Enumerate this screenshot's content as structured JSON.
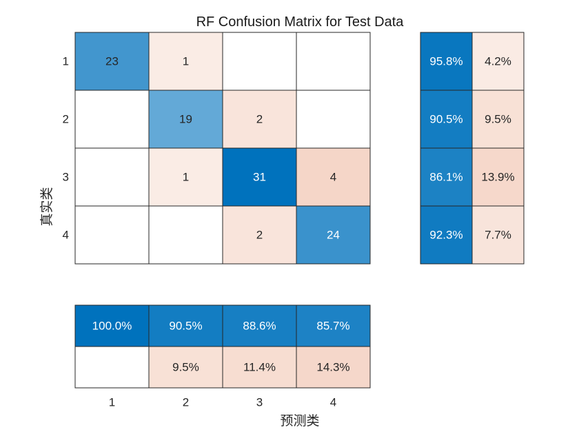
{
  "chart_data": {
    "type": "heatmap",
    "title": "RF Confusion Matrix for Test Data",
    "xlabel": "预测类",
    "ylabel": "真实类",
    "classes": [
      "1",
      "2",
      "3",
      "4"
    ],
    "matrix": [
      [
        23,
        1,
        null,
        null
      ],
      [
        null,
        19,
        2,
        null
      ],
      [
        null,
        1,
        31,
        4
      ],
      [
        null,
        null,
        2,
        24
      ]
    ],
    "row_summary": {
      "correct": [
        "95.8%",
        "90.5%",
        "86.1%",
        "92.3%"
      ],
      "incorrect": [
        "4.2%",
        "9.5%",
        "13.9%",
        "7.7%"
      ]
    },
    "column_summary": {
      "correct": [
        "100.0%",
        "90.5%",
        "88.6%",
        "85.7%"
      ],
      "incorrect": [
        "",
        "9.5%",
        "11.4%",
        "14.3%"
      ]
    },
    "colors": {
      "diag_max": "#0072bd",
      "off_max": "#f5d6c8",
      "text_dark": "#262626",
      "text_light": "#ffffff",
      "border": "#262626"
    }
  }
}
